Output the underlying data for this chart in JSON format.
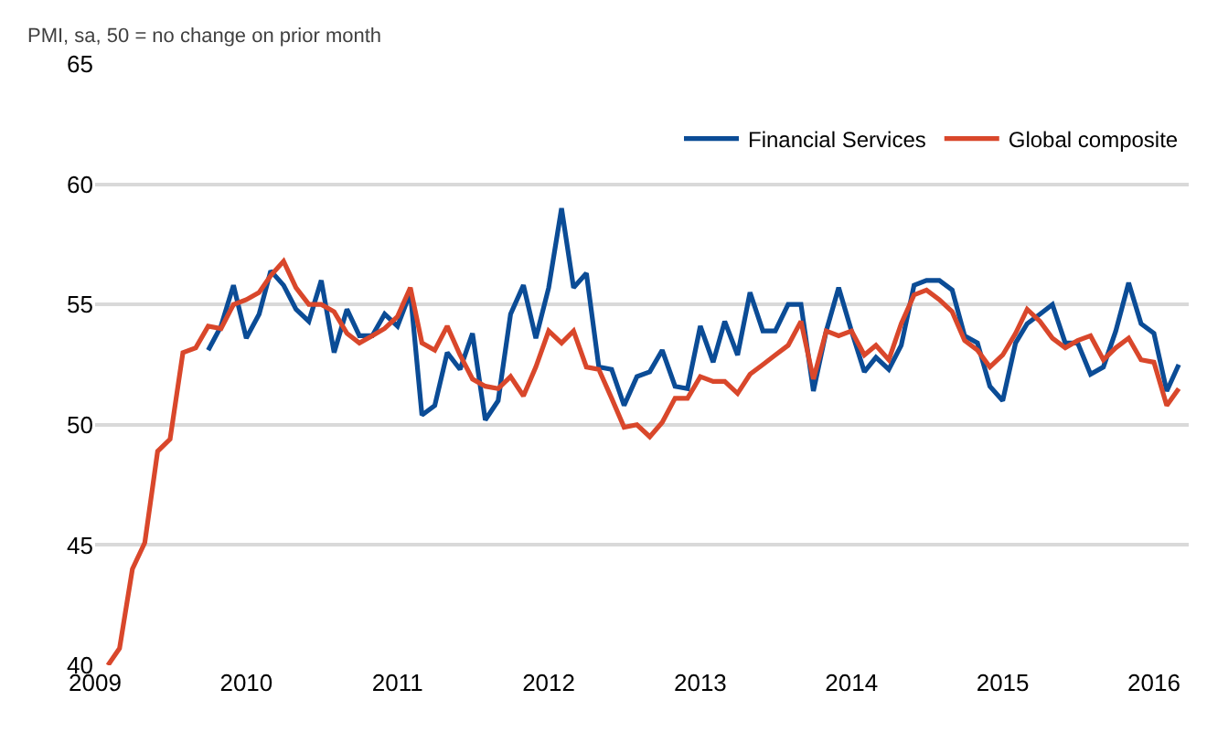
{
  "chart_data": {
    "type": "line",
    "ylabel": "PMI, sa, 50 = no change on prior month",
    "xlim": [
      "2009-01",
      "2016-03-25"
    ],
    "xticks": [
      "2009",
      "2010",
      "2011",
      "2012",
      "2013",
      "2014",
      "2015",
      "2016"
    ],
    "ylim": [
      40,
      65
    ],
    "yticks": [
      40,
      45,
      50,
      55,
      60,
      65
    ],
    "grid": "y",
    "legend": "top right",
    "marker": "none",
    "line_style": "solid",
    "series": [
      {
        "name": "Financial Services",
        "color": "#0b4c96",
        "x": [
          "2009-10",
          "2009-11",
          "2009-12",
          "2010-01",
          "2010-02",
          "2010-03",
          "2010-04",
          "2010-05",
          "2010-06",
          "2010-07",
          "2010-08",
          "2010-09",
          "2010-10",
          "2010-11",
          "2010-12",
          "2011-01",
          "2011-02",
          "2011-03",
          "2011-04",
          "2011-05",
          "2011-06",
          "2011-07",
          "2011-08",
          "2011-09",
          "2011-10",
          "2011-11",
          "2011-12",
          "2012-01",
          "2012-02",
          "2012-03",
          "2012-04",
          "2012-05",
          "2012-06",
          "2012-07",
          "2012-08",
          "2012-09",
          "2012-10",
          "2012-11",
          "2012-12",
          "2013-01",
          "2013-02",
          "2013-03",
          "2013-04",
          "2013-05",
          "2013-06",
          "2013-07",
          "2013-08",
          "2013-09",
          "2013-10",
          "2013-11",
          "2013-12",
          "2014-01",
          "2014-02",
          "2014-03",
          "2014-04",
          "2014-05",
          "2014-06",
          "2014-07",
          "2014-08",
          "2014-09",
          "2014-10",
          "2014-11",
          "2014-12",
          "2015-01",
          "2015-02",
          "2015-03",
          "2015-04",
          "2015-05",
          "2015-06",
          "2015-07",
          "2015-08",
          "2015-09",
          "2015-10",
          "2015-11",
          "2015-12",
          "2016-01",
          "2016-02",
          "2016-03"
        ],
        "values": [
          53.1,
          54.1,
          55.8,
          53.6,
          54.6,
          56.4,
          55.8,
          54.8,
          54.3,
          56.0,
          53.0,
          54.8,
          53.7,
          53.7,
          54.6,
          54.1,
          55.5,
          50.4,
          50.8,
          53.0,
          52.3,
          53.8,
          50.2,
          51.0,
          54.6,
          55.8,
          53.6,
          55.7,
          59.0,
          55.7,
          56.3,
          52.4,
          52.3,
          50.8,
          52.0,
          52.2,
          53.1,
          51.6,
          51.5,
          54.1,
          52.6,
          54.3,
          52.9,
          55.5,
          53.9,
          53.9,
          55.0,
          55.0,
          51.4,
          53.9,
          55.7,
          53.9,
          52.2,
          52.8,
          52.3,
          53.3,
          55.8,
          56.0,
          56.0,
          55.6,
          53.7,
          53.4,
          51.6,
          51.0,
          53.4,
          54.2,
          54.6,
          55.0,
          53.4,
          53.4,
          52.1,
          52.4,
          53.9,
          55.9,
          54.2,
          53.8,
          51.4,
          52.5
        ]
      },
      {
        "name": "Global composite",
        "color": "#d9472b",
        "x": [
          "2009-02",
          "2009-03",
          "2009-04",
          "2009-05",
          "2009-06",
          "2009-07",
          "2009-08",
          "2009-09",
          "2009-10",
          "2009-11",
          "2009-12",
          "2010-01",
          "2010-02",
          "2010-03",
          "2010-04",
          "2010-05",
          "2010-06",
          "2010-07",
          "2010-08",
          "2010-09",
          "2010-10",
          "2010-11",
          "2010-12",
          "2011-01",
          "2011-02",
          "2011-03",
          "2011-04",
          "2011-05",
          "2011-06",
          "2011-07",
          "2011-08",
          "2011-09",
          "2011-10",
          "2011-11",
          "2011-12",
          "2012-01",
          "2012-02",
          "2012-03",
          "2012-04",
          "2012-05",
          "2012-06",
          "2012-07",
          "2012-08",
          "2012-09",
          "2012-10",
          "2012-11",
          "2012-12",
          "2013-01",
          "2013-02",
          "2013-03",
          "2013-04",
          "2013-05",
          "2013-06",
          "2013-07",
          "2013-08",
          "2013-09",
          "2013-10",
          "2013-11",
          "2013-12",
          "2014-01",
          "2014-02",
          "2014-03",
          "2014-04",
          "2014-05",
          "2014-06",
          "2014-07",
          "2014-08",
          "2014-09",
          "2014-10",
          "2014-11",
          "2014-12",
          "2015-01",
          "2015-02",
          "2015-03",
          "2015-04",
          "2015-05",
          "2015-06",
          "2015-07",
          "2015-08",
          "2015-09",
          "2015-10",
          "2015-11",
          "2015-12",
          "2016-01",
          "2016-02",
          "2016-03"
        ],
        "values": [
          40.0,
          40.7,
          44.0,
          45.1,
          48.9,
          49.4,
          53.0,
          53.2,
          54.1,
          54.0,
          55.0,
          55.2,
          55.5,
          56.2,
          56.8,
          55.7,
          55.0,
          55.0,
          54.7,
          53.8,
          53.4,
          53.7,
          54.0,
          54.5,
          55.7,
          53.4,
          53.1,
          54.1,
          52.9,
          51.9,
          51.6,
          51.5,
          52.0,
          51.2,
          52.4,
          53.9,
          53.4,
          53.9,
          52.4,
          52.3,
          51.1,
          49.9,
          50.0,
          49.5,
          50.1,
          51.1,
          51.1,
          52.0,
          51.8,
          51.8,
          51.3,
          52.1,
          52.5,
          52.9,
          53.3,
          54.3,
          51.9,
          53.9,
          53.7,
          53.9,
          52.9,
          53.3,
          52.7,
          54.2,
          55.4,
          55.6,
          55.2,
          54.7,
          53.5,
          53.1,
          52.4,
          52.9,
          53.8,
          54.8,
          54.3,
          53.6,
          53.2,
          53.5,
          53.7,
          52.7,
          53.2,
          53.6,
          52.7,
          52.6,
          50.8,
          51.5
        ]
      }
    ]
  }
}
